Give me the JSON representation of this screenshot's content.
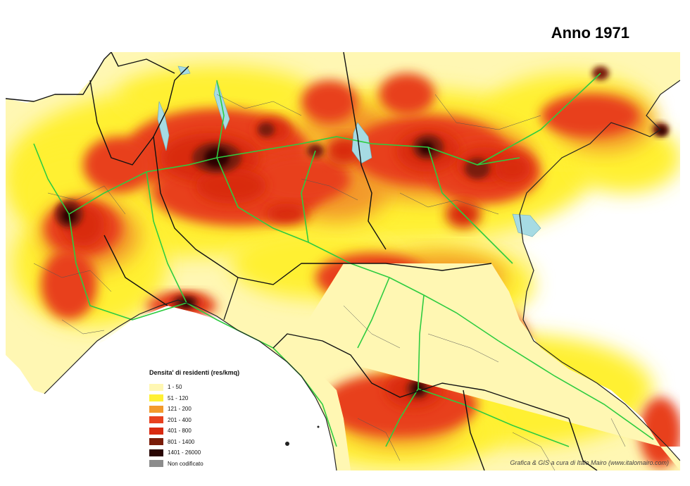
{
  "map": {
    "title": "Anno 1971",
    "credit": "Grafica & GIS a cura di Italo Mairo (www.italomairo.com)",
    "colors": {
      "sea": "#ffffff",
      "lakes": "#a6dbe3",
      "roads": "#2ecc40",
      "boundaries": "#111111",
      "minor_boundaries": "#555555"
    },
    "legend": {
      "title": "Densita' di residenti (res/kmq)",
      "items": [
        {
          "label": "1 - 50",
          "color": "#fff7b3"
        },
        {
          "label": "51 - 120",
          "color": "#fff033"
        },
        {
          "label": "121 - 200",
          "color": "#f39a2b"
        },
        {
          "label": "201 - 400",
          "color": "#e8411e"
        },
        {
          "label": "401 - 800",
          "color": "#d92a10"
        },
        {
          "label": "801 - 1400",
          "color": "#7a1c08"
        },
        {
          "label": "1401 - 26000",
          "color": "#2a0603"
        },
        {
          "label": "Non codificato",
          "color": "#8c8c8c"
        }
      ]
    }
  }
}
